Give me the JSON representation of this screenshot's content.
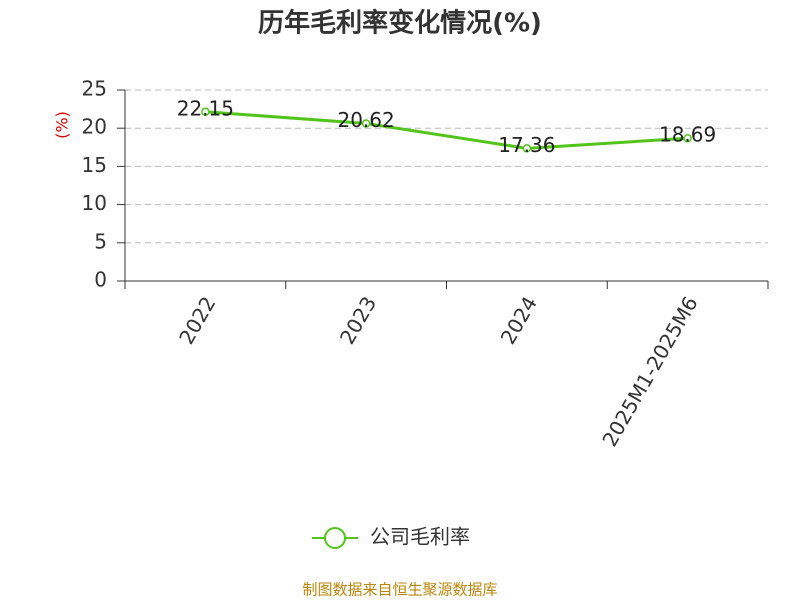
{
  "chart_data": {
    "type": "line",
    "title": "历年毛利率变化情况(%)",
    "ylabel": "(%)",
    "categories": [
      "2022",
      "2023",
      "2024",
      "2025M1-2025M6"
    ],
    "series": [
      {
        "name": "公司毛利率",
        "color": "#52c41a",
        "values": [
          22.15,
          20.62,
          17.36,
          18.69
        ]
      }
    ],
    "ylim": [
      0,
      25
    ],
    "yticks": [
      0,
      5,
      10,
      15,
      20,
      25
    ],
    "grid": true,
    "legend": "bottom",
    "footnote": "制图数据来自恒生聚源数据库"
  }
}
